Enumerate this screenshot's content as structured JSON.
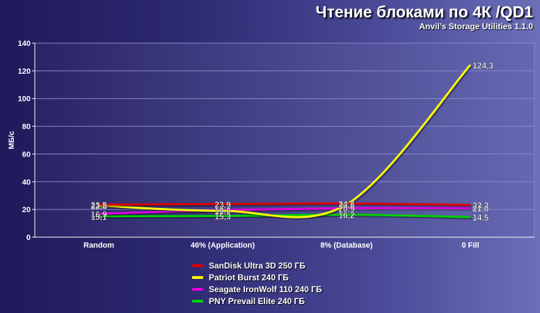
{
  "header": {
    "title": "Чтение блоками по 4К /QD1",
    "subtitle": "Anvil’s Storage Utilities 1.1.0"
  },
  "chart_data": {
    "type": "line",
    "title": "Чтение блоками по 4К /QD1",
    "subtitle": "Anvil’s Storage Utilities 1.1.0",
    "ylabel": "МБ/с",
    "xlabel": "",
    "categories": [
      "Random",
      "46% (Application)",
      "8% (Database)",
      "0 Fill"
    ],
    "ylim": [
      0,
      140
    ],
    "yticks": [
      0,
      20,
      40,
      60,
      80,
      100,
      120,
      140
    ],
    "grid": true,
    "legend_position": "bottom",
    "series": [
      {
        "name": "SanDisk Ultra 3D 250 ГБ",
        "color": "#e00000",
        "values": [
          23.5,
          23.9,
          24.3,
          23.3
        ],
        "labels": [
          "23,5",
          "23,9",
          "24,3",
          "23,3"
        ]
      },
      {
        "name": "Patriot Burst 240 ГБ",
        "color": "#ffff00",
        "values": [
          22.8,
          19.0,
          23.6,
          124.3
        ],
        "labels": [
          "22,8",
          "19,0",
          "23,6",
          "124,3"
        ]
      },
      {
        "name": "Seagate IronWolf 110 240 ГБ",
        "color": "#e000e0",
        "values": [
          16.9,
          19.6,
          20.9,
          21.0
        ],
        "labels": [
          "16,9",
          "19,6",
          "20,9",
          "21,0"
        ]
      },
      {
        "name": "PNY Prevail Elite 240 ГБ",
        "color": "#00d000",
        "values": [
          15.1,
          15.3,
          16.2,
          14.5
        ],
        "labels": [
          "15,1",
          "15,3",
          "16,2",
          "14,5"
        ]
      }
    ]
  }
}
